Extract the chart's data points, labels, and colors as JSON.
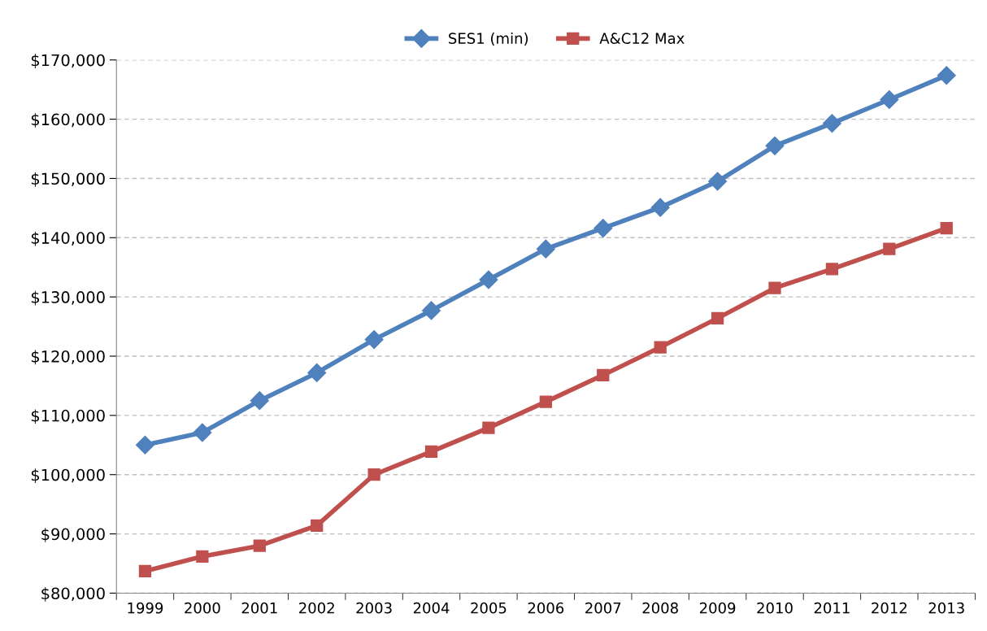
{
  "chart_data": {
    "type": "line",
    "categories": [
      "1999",
      "2000",
      "2001",
      "2002",
      "2003",
      "2004",
      "2005",
      "2006",
      "2007",
      "2008",
      "2009",
      "2010",
      "2011",
      "2012",
      "2013"
    ],
    "series": [
      {
        "name": "SES1 (min)",
        "color": "#4f81bd",
        "marker": "diamond",
        "values": [
          105000,
          107100,
          112500,
          117200,
          122800,
          127700,
          132900,
          138100,
          141600,
          145100,
          149500,
          155500,
          159300,
          163300,
          167400
        ]
      },
      {
        "name": "A&C12 Max",
        "color": "#c0504d",
        "marker": "square",
        "values": [
          83700,
          86200,
          88000,
          91400,
          100000,
          103900,
          107900,
          112300,
          116800,
          121500,
          126400,
          131500,
          134700,
          138100,
          141600
        ]
      }
    ],
    "ylim": [
      80000,
      170000
    ],
    "yticks": [
      {
        "value": 80000,
        "label": "$80,000"
      },
      {
        "value": 90000,
        "label": "$90,000"
      },
      {
        "value": 100000,
        "label": "$100,000"
      },
      {
        "value": 110000,
        "label": "$110,000"
      },
      {
        "value": 120000,
        "label": "$120,000"
      },
      {
        "value": 130000,
        "label": "$130,000"
      },
      {
        "value": 140000,
        "label": "$140,000"
      },
      {
        "value": 150000,
        "label": "$150,000"
      },
      {
        "value": 160000,
        "label": "$160,000"
      },
      {
        "value": 170000,
        "label": "$170,000"
      }
    ],
    "grid": "y",
    "legend": "top",
    "line_style": "solid"
  }
}
